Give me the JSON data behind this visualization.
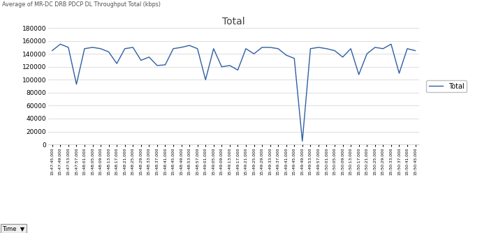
{
  "title": "Total",
  "corner_label": "Average of MR-DC DRB PDCP DL Throughput Total (kbps)",
  "legend_label": "Total",
  "line_color": "#2E5FA3",
  "background_color": "#FFFFFF",
  "ylim": [
    0,
    180000
  ],
  "yticks": [
    0,
    20000,
    40000,
    60000,
    80000,
    100000,
    120000,
    140000,
    160000,
    180000
  ],
  "ytick_labels": [
    "0",
    "20000",
    "40000",
    "60000",
    "80000",
    "100000",
    "120000",
    "140000",
    "160000",
    "180000"
  ],
  "x_labels": [
    "15:47:45.000",
    "15:47:49.000",
    "15:47:53.000",
    "15:47:57.000",
    "15:48:01.000",
    "15:48:05.000",
    "15:48:09.000",
    "15:48:13.000",
    "15:48:17.000",
    "15:48:21.000",
    "15:48:25.000",
    "15:48:29.000",
    "15:48:33.000",
    "15:48:37.000",
    "15:48:41.000",
    "15:48:45.000",
    "15:48:49.000",
    "15:48:53.000",
    "15:48:57.000",
    "15:49:01.000",
    "15:49:05.000",
    "15:49:09.000",
    "15:49:13.000",
    "15:49:17.000",
    "15:49:21.000",
    "15:49:25.000",
    "15:49:29.000",
    "15:49:33.000",
    "15:49:37.000",
    "15:49:41.000",
    "15:49:45.000",
    "15:49:49.000",
    "15:49:53.000",
    "15:49:57.000",
    "15:50:01.000",
    "15:50:05.000",
    "15:50:09.000",
    "15:50:13.000",
    "15:50:17.000",
    "15:50:21.000",
    "15:50:25.000",
    "15:50:29.000",
    "15:50:33.000",
    "15:50:37.000",
    "15:50:41.000",
    "15:50:45.000"
  ],
  "y_values": [
    145000,
    155000,
    150000,
    93000,
    148000,
    150000,
    148000,
    143000,
    125000,
    148000,
    150000,
    130000,
    135000,
    122000,
    123000,
    148000,
    150000,
    153000,
    148000,
    100000,
    148000,
    120000,
    122000,
    115000,
    148000,
    140000,
    150000,
    150000,
    148000,
    138000,
    133000,
    5000,
    148000,
    150000,
    148000,
    145000,
    135000,
    148000,
    108000,
    140000,
    150000,
    148000,
    155000,
    110000,
    148000,
    145000
  ]
}
